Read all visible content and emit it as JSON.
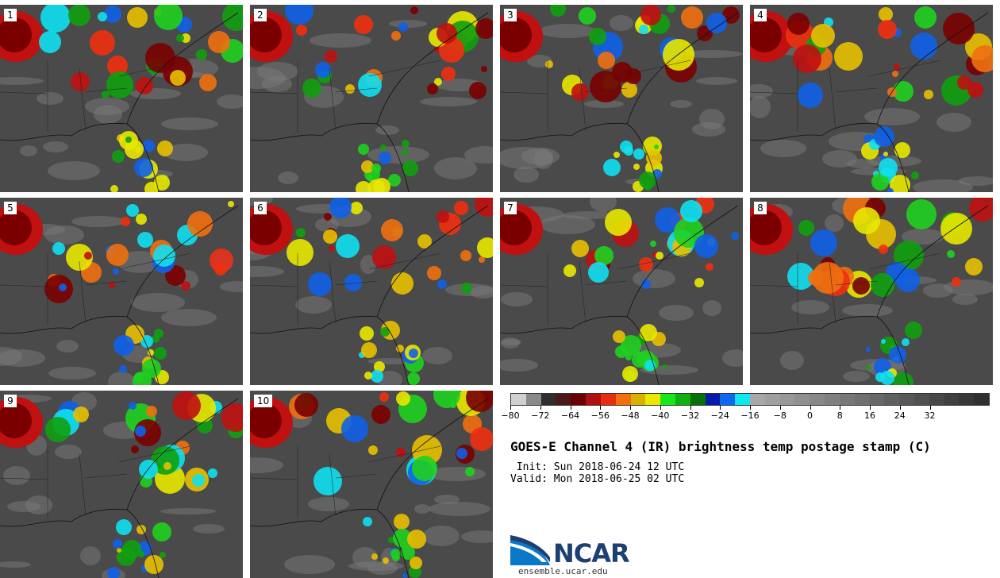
{
  "panels": [
    {
      "label": "1"
    },
    {
      "label": "2"
    },
    {
      "label": "3"
    },
    {
      "label": "4"
    },
    {
      "label": "5"
    },
    {
      "label": "6"
    },
    {
      "label": "7"
    },
    {
      "label": "8"
    },
    {
      "label": "9"
    },
    {
      "label": "10"
    }
  ],
  "colorbar": {
    "colors": [
      "#d0d0d0",
      "#8a8a8a",
      "#2e2e2e",
      "#4a1a1a",
      "#6b0000",
      "#b01010",
      "#e82e10",
      "#f07010",
      "#d8b000",
      "#e8e800",
      "#18e818",
      "#10b010",
      "#087008",
      "#0818a8",
      "#1068f0",
      "#10e8f0",
      "#a8a8a8",
      "#a0a0a0",
      "#989898",
      "#909090",
      "#888888",
      "#808080",
      "#787878",
      "#707070",
      "#686868",
      "#606060",
      "#585858",
      "#505050",
      "#484848",
      "#404040",
      "#383838",
      "#303030"
    ],
    "ticks": [
      "−80",
      "−72",
      "−64",
      "−56",
      "−48",
      "−40",
      "−32",
      "−24",
      "−16",
      "−8",
      "0",
      "8",
      "16",
      "24",
      "32"
    ]
  },
  "title": "GOES-E Channel 4 (IR) brightness temp postage stamp (C)",
  "init": " Init: Sun 2018-06-24 12 UTC",
  "valid": "Valid: Mon 2018-06-25 02 UTC",
  "logo_text": "NCAR",
  "site": "ensemble.ucar.edu"
}
